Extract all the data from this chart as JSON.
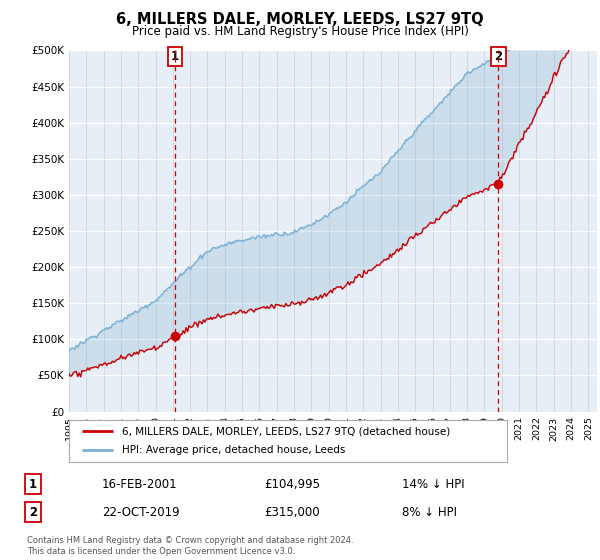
{
  "title": "6, MILLERS DALE, MORLEY, LEEDS, LS27 9TQ",
  "subtitle": "Price paid vs. HM Land Registry's House Price Index (HPI)",
  "ylim": [
    0,
    500000
  ],
  "yticks": [
    0,
    50000,
    100000,
    150000,
    200000,
    250000,
    300000,
    350000,
    400000,
    450000,
    500000
  ],
  "ytick_labels": [
    "£0",
    "£50K",
    "£100K",
    "£150K",
    "£200K",
    "£250K",
    "£300K",
    "£350K",
    "£400K",
    "£450K",
    "£500K"
  ],
  "xlim_start": 1995.0,
  "xlim_end": 2025.5,
  "hpi_color": "#7bafd4",
  "price_color": "#cc0000",
  "dashed_line_color": "#cc0000",
  "point1_x": 2001.12,
  "point1_y": 104995,
  "point2_x": 2019.81,
  "point2_y": 315000,
  "footer_text": "Contains HM Land Registry data © Crown copyright and database right 2024.\nThis data is licensed under the Open Government Licence v3.0.",
  "transaction1_date": "16-FEB-2001",
  "transaction1_price": "£104,995",
  "transaction1_hpi": "14% ↓ HPI",
  "transaction2_date": "22-OCT-2019",
  "transaction2_price": "£315,000",
  "transaction2_hpi": "8% ↓ HPI",
  "background_color": "#ffffff",
  "plot_bg_color": "#e8eef5"
}
